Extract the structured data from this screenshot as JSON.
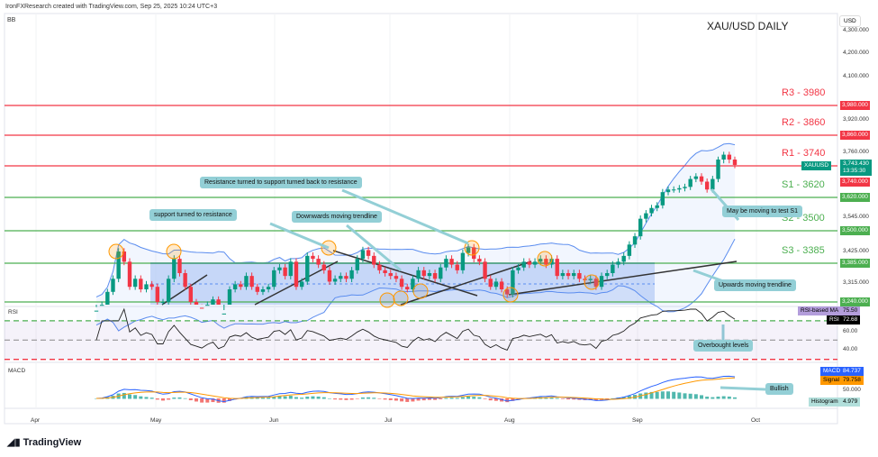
{
  "header": {
    "credit": "IronFXResearch created with TradingView.com, Sep 25, 2025 10:24 UTC+3",
    "indicator": "BB",
    "title": "XAU/USD DAILY",
    "currency": "USD",
    "logo": "TradingView"
  },
  "levels": [
    {
      "label": "R3 - 3980",
      "price": 3980,
      "tag": "3,980.000",
      "color": "#f23645"
    },
    {
      "label": "R2 - 3860",
      "price": 3860,
      "tag": "3,860.000",
      "color": "#f23645"
    },
    {
      "label": "R1 - 3740",
      "price": 3740,
      "tag": "3,740.000",
      "color": "#f23645"
    },
    {
      "label": "S1 - 3620",
      "price": 3620,
      "tag": "3,620.000",
      "color": "#4caf50"
    },
    {
      "label": "S2 - 3500",
      "price": 3500,
      "tag": "3,500.000",
      "color": "#4caf50"
    },
    {
      "label": "S3 - 3385",
      "price": 3385,
      "tag": "3,385.000",
      "color": "#4caf50"
    },
    {
      "label": "",
      "price": 3240,
      "tag": "3,240.000",
      "color": "#4caf50"
    }
  ],
  "price_axis": [
    "4,300.000",
    "4,200.000",
    "4,100.000",
    "3,920.000",
    "3,760.000",
    "3,545.000",
    "3,425.000",
    "3,315.000"
  ],
  "price_axis_values": [
    4300,
    4200,
    4100,
    3920,
    3760,
    3545,
    3425,
    3315
  ],
  "last": {
    "symbol": "XAUUSD",
    "price": "3,743.430",
    "countdown": "13:35:30"
  },
  "rsi": {
    "label": "RSI",
    "ma_label": "RSI-based MA",
    "ma_value": "75.50",
    "value": "72.68",
    "axis": [
      "60.00",
      "40.00"
    ]
  },
  "macd": {
    "label": "MACD",
    "macd_label": "MACD",
    "macd_value": "84.737",
    "signal_label": "Signal",
    "signal_value": "79.758",
    "hist_label": "Histogram",
    "hist_value": "4.979",
    "axis": "50.000"
  },
  "months": [
    "Apr",
    "May",
    "Jun",
    "Jul",
    "Aug",
    "Sep",
    "Oct"
  ],
  "notes": {
    "res_sup": "Resistance turned to support turned back to resistance",
    "sup_res": "support turned to resistance",
    "down": "Downwards moving trendline",
    "test_s1": "May be moving to test S1",
    "up": "Upwards moving trendline",
    "overbought": "Overbought levels",
    "bullish": "Bullish"
  },
  "colors": {
    "up": "#089981",
    "down": "#f23645",
    "band": "#5b8def"
  },
  "chart_data": {
    "type": "candlestick",
    "title": "XAU/USD DAILY",
    "ylabel": "USD",
    "closes": [
      3210,
      3230,
      3280,
      3330,
      3425,
      3390,
      3300,
      3330,
      3290,
      3310,
      3300,
      3240,
      3240,
      3330,
      3400,
      3350,
      3300,
      3240,
      3220,
      3200,
      3230,
      3250,
      3180,
      3200,
      3290,
      3310,
      3300,
      3340,
      3300,
      3280,
      3290,
      3300,
      3360,
      3370,
      3340,
      3390,
      3300,
      3320,
      3410,
      3400,
      3380,
      3360,
      3320,
      3330,
      3340,
      3330,
      3360,
      3400,
      3430,
      3410,
      3380,
      3360,
      3350,
      3340,
      3330,
      3300,
      3290,
      3330,
      3360,
      3340,
      3350,
      3330,
      3370,
      3400,
      3380,
      3360,
      3420,
      3440,
      3400,
      3390,
      3330,
      3300,
      3320,
      3290,
      3270,
      3360,
      3370,
      3390,
      3380,
      3390,
      3400,
      3380,
      3400,
      3340,
      3350,
      3340,
      3350,
      3330,
      3325,
      3330,
      3300,
      3340,
      3350,
      3380,
      3390,
      3410,
      3450,
      3480,
      3540,
      3560,
      3580,
      3590,
      3640,
      3650,
      3650,
      3655,
      3660,
      3690,
      3700,
      3680,
      3650,
      3690,
      3760,
      3780,
      3760,
      3743
    ]
  }
}
